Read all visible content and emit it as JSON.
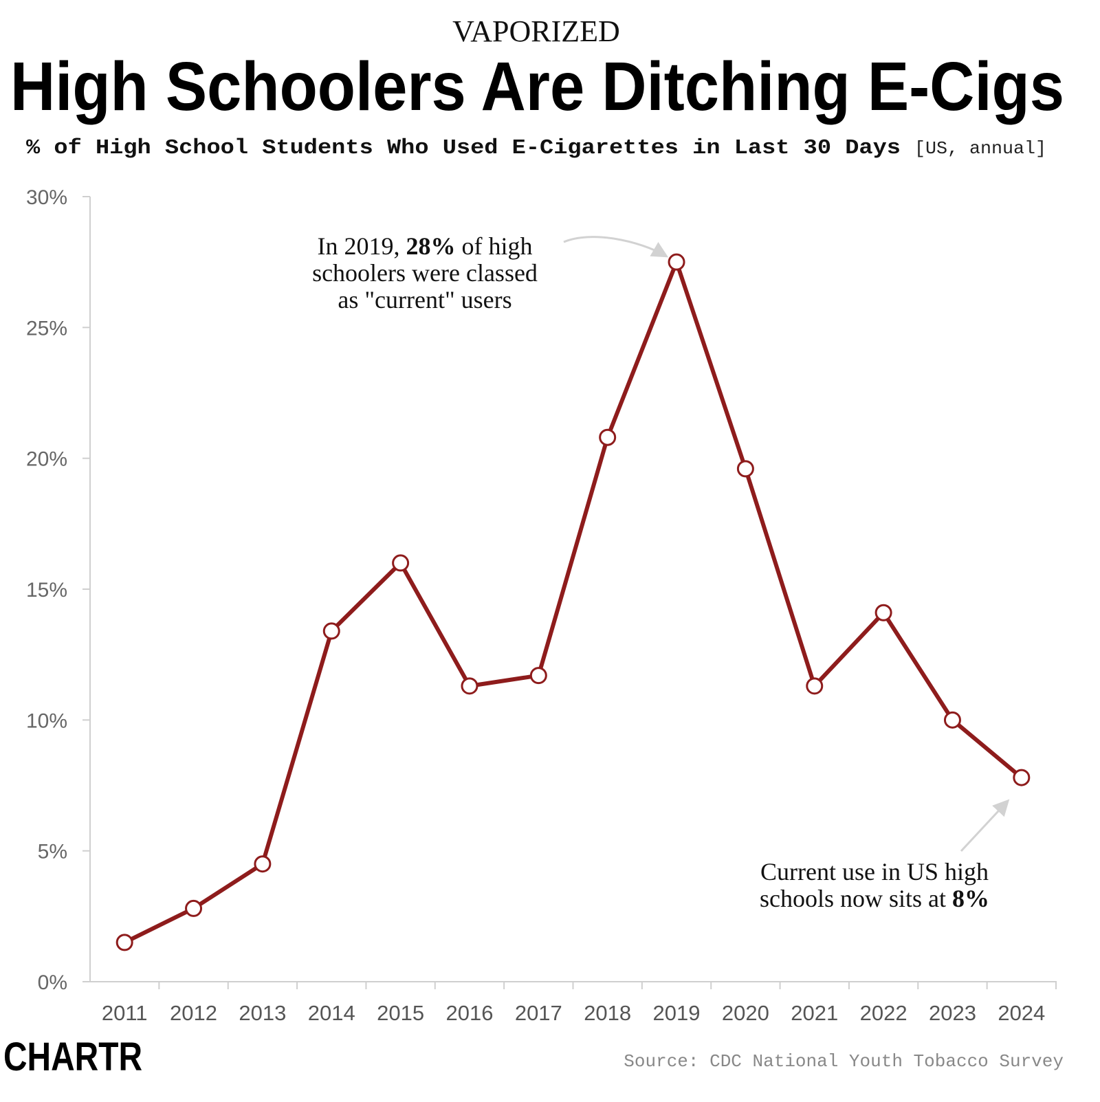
{
  "chart_data": {
    "type": "line",
    "kicker": "VAPORIZED",
    "title": "High Schoolers Are Ditching E-Cigs",
    "subtitle": "% of High School Students Who Used E-Cigarettes in Last 30 Days",
    "subtitle_note": "[US, annual]",
    "categories": [
      "2011",
      "2012",
      "2013",
      "2014",
      "2015",
      "2016",
      "2017",
      "2018",
      "2019",
      "2020",
      "2021",
      "2022",
      "2023",
      "2024"
    ],
    "values": [
      1.5,
      2.8,
      4.5,
      13.4,
      16.0,
      11.3,
      11.7,
      20.8,
      27.5,
      19.6,
      11.3,
      14.1,
      10.0,
      7.8
    ],
    "color": "#8e1c1c",
    "ylim": [
      0,
      30
    ],
    "yticks": [
      {
        "value": 0,
        "label": "0%"
      },
      {
        "value": 5,
        "label": "5%"
      },
      {
        "value": 10,
        "label": "10%"
      },
      {
        "value": 15,
        "label": "15%"
      },
      {
        "value": 20,
        "label": "20%"
      },
      {
        "value": 25,
        "label": "25%"
      },
      {
        "value": 30,
        "label": "30%"
      }
    ],
    "grid": false,
    "annotations": [
      {
        "lines": [
          [
            {
              "text": "In 2019, "
            },
            {
              "text": "28%",
              "bold": true
            },
            {
              "text": " of high"
            }
          ],
          [
            {
              "text": "schoolers were classed"
            }
          ],
          [
            {
              "text": "as \"current\" users"
            }
          ]
        ]
      },
      {
        "lines": [
          [
            {
              "text": "Current use in US high"
            }
          ],
          [
            {
              "text": "schools now sits at "
            },
            {
              "text": "8%",
              "bold": true
            }
          ]
        ]
      }
    ],
    "source": "Source: CDC National Youth Tobacco Survey",
    "logo": "CHARTR"
  }
}
